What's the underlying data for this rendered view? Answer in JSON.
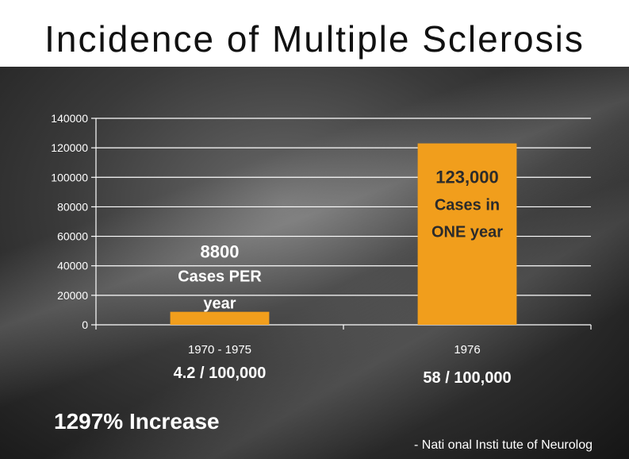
{
  "title": "Incidence of Multiple Sclerosis",
  "colors": {
    "bar": "#F19E1C",
    "grid": "#ffffff",
    "bar_label_dark": "#2b2b2b",
    "bar_label_light": "#ffffff"
  },
  "chart_data": {
    "type": "bar",
    "title": "Incidence of Multiple Sclerosis",
    "xlabel": "",
    "ylabel": "",
    "categories": [
      "1970 - 1975",
      "1976"
    ],
    "values": [
      8800,
      123000
    ],
    "ylim": [
      0,
      140000
    ],
    "yticks": [
      "0",
      "20000",
      "40000",
      "60000",
      "80000",
      "100000",
      "120000",
      "140000"
    ],
    "grid": true,
    "legend": "none",
    "bar_annotations": [
      [
        "8800",
        "Cases PER",
        "year"
      ],
      [
        "123,000",
        "Cases in",
        "ONE year"
      ]
    ],
    "rates": [
      "4.2 / 100,000",
      "58 / 100,000"
    ]
  },
  "footer": {
    "increase": "1297% Increase",
    "source": "- Nati  onal Insti  tute of Neurolog"
  }
}
